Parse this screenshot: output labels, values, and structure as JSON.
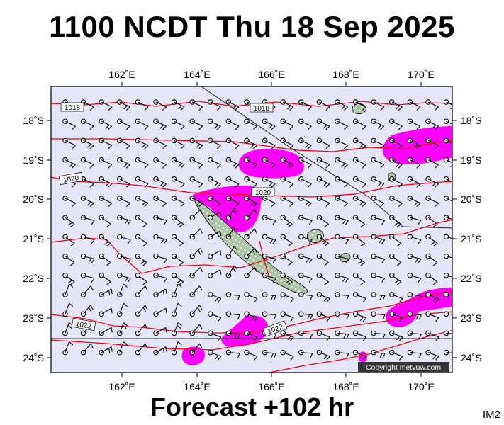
{
  "header": {
    "title": "1100 NCDT Thu 18 Sep 2025"
  },
  "footer": {
    "forecast_label": "Forecast +102 hr",
    "image_code": "IM2"
  },
  "copyright": "Copyright metvuw.com",
  "colors": {
    "background": "#e6e6fa",
    "isobar": "#ff0000",
    "precip": "#ff00ff",
    "land": "#a9c3a4",
    "land_hatch": "#ffffff",
    "axis": "#000000"
  },
  "axes": {
    "lon_ticks": [
      "162˚E",
      "164˚E",
      "166˚E",
      "168˚E",
      "170˚E"
    ],
    "lat_ticks": [
      "18˚S",
      "19˚S",
      "20˚S",
      "21˚S",
      "22˚S",
      "23˚S",
      "24˚S"
    ]
  },
  "isobar_labels": [
    "1018",
    "1018",
    "1020",
    "1020",
    "1022",
    "1022"
  ]
}
